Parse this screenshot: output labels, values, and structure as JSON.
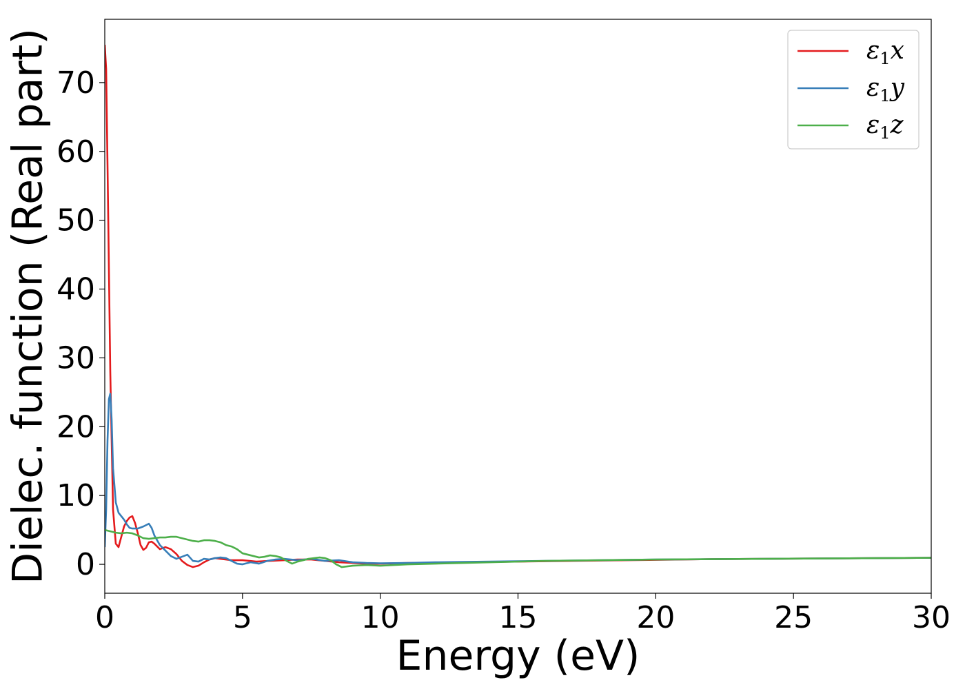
{
  "chart_data": {
    "type": "line",
    "title": "",
    "xlabel": "Energy (eV)",
    "ylabel": "Dielec. function (Real part)",
    "xlim": [
      0,
      30
    ],
    "ylim": [
      -4.2,
      79.2
    ],
    "xticks": [
      0,
      5,
      10,
      15,
      20,
      25,
      30
    ],
    "yticks": [
      0,
      10,
      20,
      30,
      40,
      50,
      60,
      70
    ],
    "grid": false,
    "legend_position": "top-right",
    "series": [
      {
        "name": "ε1x",
        "legend_base": "ε",
        "legend_sub": "1",
        "legend_tail": "x",
        "color": "#e41a1c",
        "x": [
          0,
          0.05,
          0.1,
          0.2,
          0.3,
          0.4,
          0.5,
          0.6,
          0.7,
          0.8,
          0.9,
          1.0,
          1.1,
          1.2,
          1.3,
          1.4,
          1.5,
          1.6,
          1.7,
          1.8,
          2.0,
          2.2,
          2.4,
          2.6,
          2.8,
          3.0,
          3.2,
          3.4,
          3.6,
          3.8,
          4.0,
          4.2,
          4.4,
          4.6,
          4.8,
          5.0,
          5.5,
          6.0,
          6.5,
          7.0,
          7.5,
          8.0,
          8.5,
          9.0,
          9.5,
          10,
          11,
          12,
          13,
          14,
          15,
          16,
          17,
          18,
          19,
          20,
          22,
          24,
          26,
          28,
          30
        ],
        "y": [
          75.5,
          72,
          58,
          28,
          8,
          3,
          2.5,
          4,
          5.5,
          6.3,
          6.8,
          7.0,
          6.0,
          4.5,
          2.8,
          2.1,
          2.4,
          3.2,
          3.3,
          3.0,
          2.2,
          2.5,
          2.2,
          1.5,
          0.5,
          -0.1,
          -0.4,
          -0.2,
          0.3,
          0.7,
          0.9,
          0.8,
          0.7,
          0.6,
          0.6,
          0.6,
          0.4,
          0.5,
          0.6,
          0.7,
          0.7,
          0.5,
          0.3,
          0.2,
          0.1,
          0.1,
          0.2,
          0.2,
          0.3,
          0.35,
          0.4,
          0.45,
          0.5,
          0.55,
          0.6,
          0.65,
          0.75,
          0.8,
          0.85,
          0.9,
          0.95
        ]
      },
      {
        "name": "ε1y",
        "legend_base": "ε",
        "legend_sub": "1",
        "legend_tail": "y",
        "color": "#377eb8",
        "x": [
          0,
          0.05,
          0.1,
          0.15,
          0.2,
          0.25,
          0.3,
          0.4,
          0.5,
          0.6,
          0.7,
          0.8,
          0.9,
          1.0,
          1.2,
          1.4,
          1.6,
          1.7,
          1.8,
          2.0,
          2.2,
          2.4,
          2.6,
          2.8,
          3.0,
          3.2,
          3.4,
          3.6,
          3.8,
          4.0,
          4.2,
          4.4,
          4.6,
          4.8,
          5.0,
          5.3,
          5.6,
          5.9,
          6.2,
          6.5,
          7.0,
          7.5,
          8.0,
          8.5,
          9.0,
          9.5,
          10,
          11,
          12,
          13,
          14,
          15,
          16,
          17,
          18,
          19,
          20,
          22,
          24,
          26,
          28,
          30
        ],
        "y": [
          2.5,
          8,
          18,
          24,
          24.8,
          21,
          14,
          9,
          7.5,
          7,
          6.5,
          5.8,
          5.3,
          5.2,
          5.2,
          5.5,
          5.9,
          5.3,
          4.2,
          2.8,
          2.0,
          1.2,
          0.8,
          1.1,
          1.4,
          0.5,
          0.4,
          0.8,
          0.7,
          0.9,
          1.0,
          0.9,
          0.5,
          0.1,
          0.0,
          0.3,
          0.1,
          0.5,
          0.7,
          0.8,
          0.6,
          0.8,
          0.5,
          0.6,
          0.3,
          0.2,
          0.15,
          0.2,
          0.3,
          0.35,
          0.4,
          0.45,
          0.5,
          0.55,
          0.6,
          0.65,
          0.7,
          0.75,
          0.8,
          0.85,
          0.9,
          0.95
        ]
      },
      {
        "name": "ε1z",
        "legend_base": "ε",
        "legend_sub": "1",
        "legend_tail": "z",
        "color": "#4daf4a",
        "x": [
          0,
          0.2,
          0.4,
          0.6,
          0.8,
          1.0,
          1.2,
          1.4,
          1.6,
          1.8,
          2.0,
          2.2,
          2.4,
          2.6,
          2.8,
          3.0,
          3.2,
          3.4,
          3.6,
          3.8,
          4.0,
          4.2,
          4.4,
          4.6,
          4.8,
          5.0,
          5.2,
          5.4,
          5.6,
          5.8,
          6.0,
          6.2,
          6.4,
          6.6,
          6.8,
          7.0,
          7.2,
          7.4,
          7.6,
          7.8,
          8.0,
          8.2,
          8.4,
          8.6,
          8.8,
          9.0,
          9.5,
          10,
          11,
          12,
          13,
          14,
          15,
          16,
          17,
          18,
          19,
          20,
          22,
          24,
          26,
          28,
          30
        ],
        "y": [
          5.0,
          4.8,
          4.6,
          4.5,
          4.6,
          4.5,
          4.2,
          3.8,
          3.7,
          3.8,
          3.9,
          3.9,
          4.0,
          4.0,
          3.8,
          3.6,
          3.4,
          3.3,
          3.5,
          3.5,
          3.4,
          3.2,
          2.8,
          2.6,
          2.2,
          1.6,
          1.4,
          1.2,
          1.0,
          1.1,
          1.3,
          1.2,
          1.0,
          0.5,
          0.1,
          0.4,
          0.6,
          0.8,
          0.9,
          1.0,
          0.9,
          0.6,
          0.0,
          -0.4,
          -0.3,
          -0.2,
          -0.1,
          -0.2,
          0.0,
          0.1,
          0.2,
          0.3,
          0.4,
          0.5,
          0.55,
          0.6,
          0.65,
          0.7,
          0.75,
          0.8,
          0.85,
          0.9,
          0.95
        ]
      }
    ]
  }
}
